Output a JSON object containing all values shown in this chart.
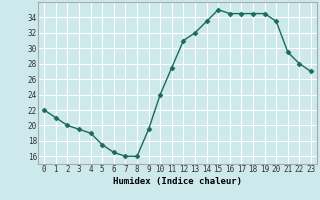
{
  "x": [
    0,
    1,
    2,
    3,
    4,
    5,
    6,
    7,
    8,
    9,
    10,
    11,
    12,
    13,
    14,
    15,
    16,
    17,
    18,
    19,
    20,
    21,
    22,
    23
  ],
  "y": [
    22,
    21,
    20,
    19.5,
    19,
    17.5,
    16.5,
    16,
    16,
    19.5,
    24,
    27.5,
    31,
    32,
    33.5,
    35,
    34.5,
    34.5,
    34.5,
    34.5,
    33.5,
    29.5,
    28,
    27
  ],
  "xlabel": "Humidex (Indice chaleur)",
  "xlim": [
    -0.5,
    23.5
  ],
  "ylim": [
    15,
    36
  ],
  "yticks": [
    16,
    18,
    20,
    22,
    24,
    26,
    28,
    30,
    32,
    34
  ],
  "xticks": [
    0,
    1,
    2,
    3,
    4,
    5,
    6,
    7,
    8,
    9,
    10,
    11,
    12,
    13,
    14,
    15,
    16,
    17,
    18,
    19,
    20,
    21,
    22,
    23
  ],
  "line_color": "#1a6b5a",
  "marker_color": "#1a6b5a",
  "bg_color": "#cde9ec",
  "grid_color": "#ffffff",
  "spine_color": "#aaaaaa",
  "tick_label_color": "#333333",
  "xlabel_color": "#000000"
}
